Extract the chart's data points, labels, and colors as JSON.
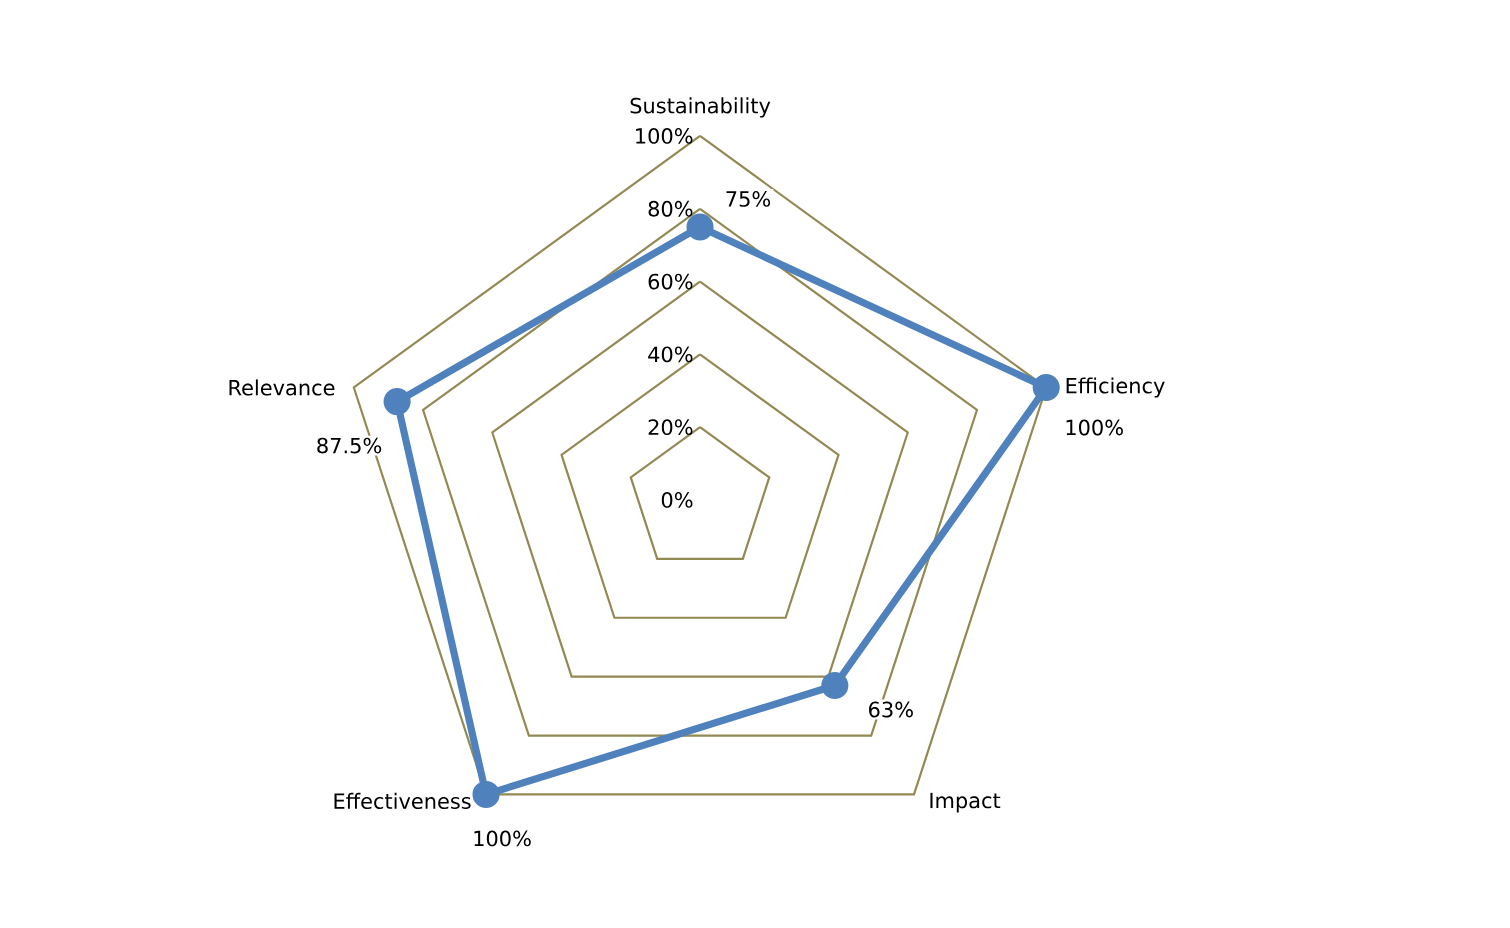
{
  "chart_data": {
    "type": "radar",
    "categories": [
      "Sustainability",
      "Efficiency",
      "Impact",
      "Effectiveness",
      "Relevance"
    ],
    "series": [
      {
        "color": "#4f81bd",
        "values": [
          75,
          100,
          63,
          100,
          87.5
        ],
        "value_labels": [
          "75%",
          "100%",
          "63%",
          "100%",
          "87.5%"
        ]
      }
    ],
    "ylim": [
      0,
      100
    ],
    "yticks": [
      {
        "value": 0,
        "label": "0%"
      },
      {
        "value": 20,
        "label": "20%"
      },
      {
        "value": 40,
        "label": "40%"
      },
      {
        "value": 60,
        "label": "60%"
      },
      {
        "value": 80,
        "label": "80%"
      },
      {
        "value": 100,
        "label": "100%"
      }
    ],
    "grid": true,
    "marker": "circle"
  }
}
